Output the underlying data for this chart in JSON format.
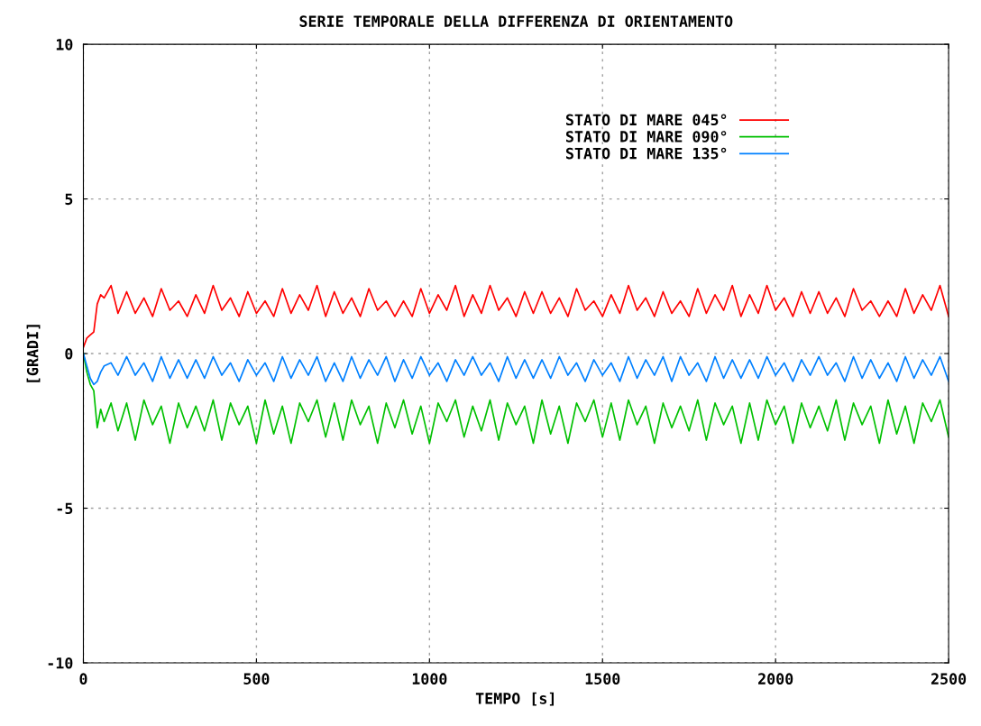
{
  "chart_data": {
    "type": "line",
    "title": "SERIE TEMPORALE DELLA DIFFERENZA DI ORIENTAMENTO",
    "xlabel": "TEMPO [s]",
    "ylabel": "[GRADI]",
    "x": [
      0,
      10,
      20,
      30,
      40,
      50,
      60,
      80,
      100,
      125,
      150,
      175,
      200,
      225,
      250,
      275,
      300,
      325,
      350,
      375,
      400,
      425,
      450,
      475,
      500,
      525,
      550,
      575,
      600,
      625,
      650,
      675,
      700,
      725,
      750,
      775,
      800,
      825,
      850,
      875,
      900,
      925,
      950,
      975,
      1000,
      1025,
      1050,
      1075,
      1100,
      1125,
      1150,
      1175,
      1200,
      1225,
      1250,
      1275,
      1300,
      1325,
      1350,
      1375,
      1400,
      1425,
      1450,
      1475,
      1500,
      1525,
      1550,
      1575,
      1600,
      1625,
      1650,
      1675,
      1700,
      1725,
      1750,
      1775,
      1800,
      1825,
      1850,
      1875,
      1900,
      1925,
      1950,
      1975,
      2000,
      2025,
      2050,
      2075,
      2100,
      2125,
      2150,
      2175,
      2200,
      2225,
      2250,
      2275,
      2300,
      2325,
      2350,
      2375,
      2400,
      2425,
      2450,
      2475,
      2500
    ],
    "series": [
      {
        "name": "STATO DI MARE 045°",
        "color": "#ff0000",
        "values": [
          0.2,
          0.5,
          0.6,
          0.7,
          1.6,
          1.9,
          1.8,
          2.2,
          1.3,
          2.0,
          1.3,
          1.8,
          1.2,
          2.1,
          1.4,
          1.7,
          1.2,
          1.9,
          1.3,
          2.2,
          1.4,
          1.8,
          1.2,
          2.0,
          1.3,
          1.7,
          1.2,
          2.1,
          1.3,
          1.9,
          1.4,
          2.2,
          1.2,
          2.0,
          1.3,
          1.8,
          1.2,
          2.1,
          1.4,
          1.7,
          1.2,
          1.7,
          1.2,
          2.1,
          1.3,
          1.9,
          1.4,
          2.2,
          1.2,
          1.9,
          1.3,
          2.2,
          1.4,
          1.8,
          1.2,
          2.0,
          1.3,
          2.0,
          1.3,
          1.8,
          1.2,
          2.1,
          1.4,
          1.7,
          1.2,
          1.9,
          1.3,
          2.2,
          1.4,
          1.8,
          1.2,
          2.0,
          1.3,
          1.7,
          1.2,
          2.1,
          1.3,
          1.9,
          1.4,
          2.2,
          1.2,
          1.9,
          1.3,
          2.2,
          1.4,
          1.8,
          1.2,
          2.0,
          1.3,
          2.0,
          1.3,
          1.8,
          1.2,
          2.1,
          1.4,
          1.7,
          1.2,
          1.7,
          1.2,
          2.1,
          1.3,
          1.9,
          1.4,
          2.2,
          1.2
        ]
      },
      {
        "name": "STATO DI MARE 090°",
        "color": "#00c000",
        "values": [
          0,
          -0.6,
          -1.0,
          -1.2,
          -2.4,
          -1.8,
          -2.2,
          -1.6,
          -2.5,
          -1.6,
          -2.8,
          -1.5,
          -2.3,
          -1.7,
          -2.9,
          -1.6,
          -2.4,
          -1.7,
          -2.5,
          -1.5,
          -2.8,
          -1.6,
          -2.3,
          -1.7,
          -2.9,
          -1.5,
          -2.6,
          -1.7,
          -2.9,
          -1.6,
          -2.2,
          -1.5,
          -2.7,
          -1.6,
          -2.8,
          -1.5,
          -2.3,
          -1.7,
          -2.9,
          -1.6,
          -2.4,
          -1.5,
          -2.6,
          -1.7,
          -2.9,
          -1.6,
          -2.2,
          -1.5,
          -2.7,
          -1.7,
          -2.5,
          -1.5,
          -2.8,
          -1.6,
          -2.3,
          -1.7,
          -2.9,
          -1.5,
          -2.6,
          -1.7,
          -2.9,
          -1.6,
          -2.2,
          -1.5,
          -2.7,
          -1.6,
          -2.8,
          -1.5,
          -2.3,
          -1.7,
          -2.9,
          -1.6,
          -2.4,
          -1.7,
          -2.5,
          -1.5,
          -2.8,
          -1.6,
          -2.3,
          -1.7,
          -2.9,
          -1.6,
          -2.8,
          -1.5,
          -2.3,
          -1.7,
          -2.9,
          -1.6,
          -2.4,
          -1.7,
          -2.5,
          -1.5,
          -2.8,
          -1.6,
          -2.3,
          -1.7,
          -2.9,
          -1.5,
          -2.6,
          -1.7,
          -2.9,
          -1.6,
          -2.2,
          -1.5,
          -2.7
        ]
      },
      {
        "name": "STATO DI MARE 135°",
        "color": "#0080ff",
        "values": [
          0,
          -0.4,
          -0.8,
          -1.0,
          -0.9,
          -0.6,
          -0.4,
          -0.3,
          -0.7,
          -0.1,
          -0.7,
          -0.3,
          -0.9,
          -0.1,
          -0.8,
          -0.2,
          -0.8,
          -0.2,
          -0.8,
          -0.1,
          -0.7,
          -0.3,
          -0.9,
          -0.2,
          -0.7,
          -0.3,
          -0.9,
          -0.1,
          -0.8,
          -0.2,
          -0.7,
          -0.1,
          -0.9,
          -0.3,
          -0.9,
          -0.1,
          -0.8,
          -0.2,
          -0.7,
          -0.1,
          -0.9,
          -0.2,
          -0.8,
          -0.1,
          -0.7,
          -0.3,
          -0.9,
          -0.2,
          -0.7,
          -0.1,
          -0.7,
          -0.3,
          -0.9,
          -0.1,
          -0.8,
          -0.2,
          -0.8,
          -0.2,
          -0.8,
          -0.1,
          -0.7,
          -0.3,
          -0.9,
          -0.2,
          -0.7,
          -0.3,
          -0.9,
          -0.1,
          -0.8,
          -0.2,
          -0.7,
          -0.1,
          -0.9,
          -0.1,
          -0.7,
          -0.3,
          -0.9,
          -0.1,
          -0.8,
          -0.2,
          -0.8,
          -0.2,
          -0.8,
          -0.1,
          -0.7,
          -0.3,
          -0.9,
          -0.2,
          -0.7,
          -0.1,
          -0.7,
          -0.3,
          -0.9,
          -0.1,
          -0.8,
          -0.2,
          -0.8,
          -0.3,
          -0.9,
          -0.1,
          -0.8,
          -0.2,
          -0.7,
          -0.1,
          -0.9
        ]
      }
    ],
    "xlim": [
      0,
      2500
    ],
    "xticks": [
      0,
      500,
      1000,
      1500,
      2000,
      2500
    ],
    "ylim": [
      -10,
      10
    ],
    "yticks": [
      -10,
      -5,
      0,
      5,
      10
    ],
    "grid": true,
    "legend": "top right",
    "line_style": "solid",
    "marker": "none"
  }
}
